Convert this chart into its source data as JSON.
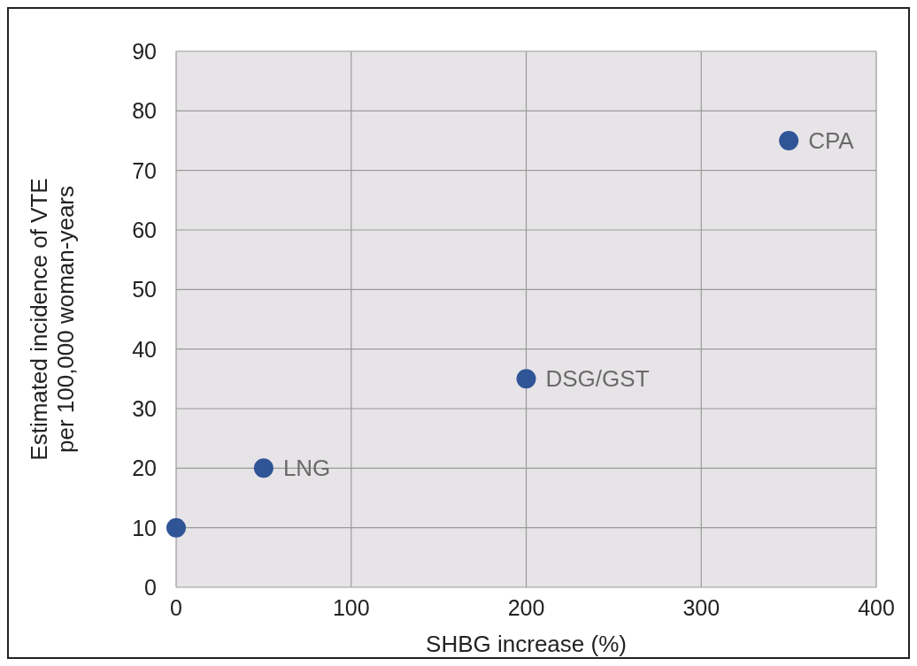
{
  "chart_data": {
    "type": "scatter",
    "xlabel": "SHBG increase (%)",
    "ylabel": "Estimated incidence of VTE\nper 100,000 woman-years",
    "x": [
      0,
      50,
      200,
      350
    ],
    "values": [
      10,
      20,
      35,
      75
    ],
    "color": "#2f5597",
    "marker": "circle",
    "xlim": [
      0,
      400
    ],
    "xticks": [
      0,
      100,
      200,
      300,
      400
    ],
    "ylim": [
      0,
      90
    ],
    "yticks": [
      0,
      10,
      20,
      30,
      40,
      50,
      60,
      70,
      80,
      90
    ],
    "grid": true,
    "annotations": [
      {
        "text": "LNG",
        "x": 50,
        "y": 20
      },
      {
        "text": "DSG/GST",
        "x": 200,
        "y": 35
      },
      {
        "text": "CPA",
        "x": 350,
        "y": 75
      }
    ]
  }
}
